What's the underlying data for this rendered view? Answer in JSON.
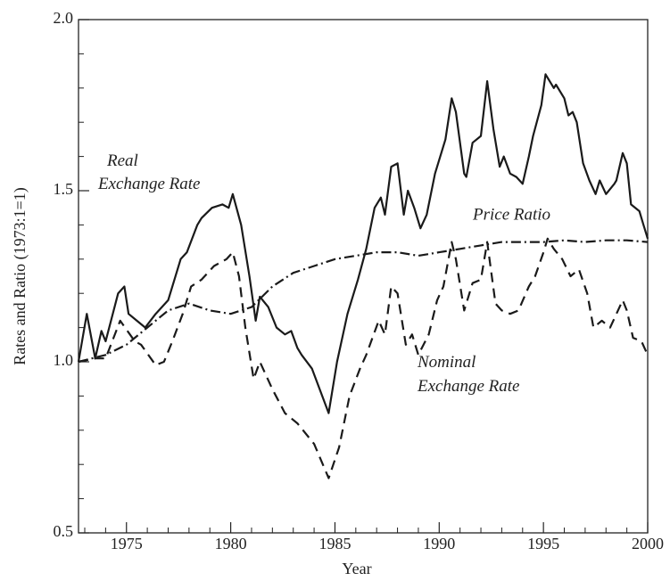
{
  "chart_data": {
    "type": "line",
    "xlabel": "Year",
    "ylabel": "Rates and Ratio (1973:1=1)",
    "xlim": [
      1972.7,
      2000
    ],
    "xticks": [
      1975,
      1980,
      1985,
      1990,
      1995,
      2000
    ],
    "xminorticks": [
      1973,
      1974,
      1976,
      1977,
      1978,
      1979,
      1981,
      1982,
      1983,
      1984,
      1986,
      1987,
      1988,
      1989,
      1991,
      1992,
      1993,
      1994,
      1996,
      1997,
      1998,
      1999
    ],
    "ylim": [
      0.5,
      2.0
    ],
    "yticks": [
      0.5,
      {
        "value": 1.0,
        "label": "1.0"
      },
      1.5,
      {
        "value": 2.0,
        "label": "2.0"
      }
    ],
    "yminorticks": [
      0.6,
      0.7,
      0.8,
      0.9,
      1.1,
      1.2,
      1.3,
      1.4,
      1.6,
      1.7,
      1.8,
      1.9
    ],
    "grid": false,
    "series": [
      {
        "name": "Real Exchange Rate",
        "color": "#1a1a1a",
        "style": "solid",
        "x": [
          1972.7,
          1973.1,
          1973.5,
          1973.8,
          1974.0,
          1974.6,
          1974.9,
          1975.1,
          1975.5,
          1975.9,
          1976.4,
          1977.0,
          1977.6,
          1977.9,
          1978.4,
          1978.6,
          1979.1,
          1979.6,
          1979.9,
          1980.1,
          1980.5,
          1980.9,
          1981.2,
          1981.4,
          1981.8,
          1982.2,
          1982.6,
          1982.9,
          1983.2,
          1983.4,
          1983.9,
          1984.7,
          1985.1,
          1985.6,
          1986.1,
          1986.5,
          1986.9,
          1987.2,
          1987.4,
          1987.7,
          1988.0,
          1988.3,
          1988.5,
          1988.8,
          1989.1,
          1989.4,
          1989.8,
          1990.3,
          1990.6,
          1990.8,
          1991.2,
          1991.3,
          1991.6,
          1992.0,
          1992.3,
          1992.6,
          1992.9,
          1993.1,
          1993.4,
          1993.7,
          1994.0,
          1994.3,
          1994.5,
          1994.9,
          1995.1,
          1995.5,
          1995.6,
          1996.0,
          1996.2,
          1996.4,
          1996.6,
          1996.9,
          1997.2,
          1997.5,
          1997.7,
          1998.0,
          1998.4,
          1998.5,
          1998.8,
          1999.0,
          1999.2,
          1999.6,
          1999.8,
          2000.0
        ],
        "values": [
          1.0,
          1.14,
          1.01,
          1.09,
          1.06,
          1.2,
          1.22,
          1.14,
          1.12,
          1.1,
          1.14,
          1.18,
          1.3,
          1.32,
          1.4,
          1.42,
          1.45,
          1.46,
          1.45,
          1.49,
          1.4,
          1.25,
          1.12,
          1.19,
          1.16,
          1.1,
          1.08,
          1.09,
          1.04,
          1.02,
          0.98,
          0.85,
          1.0,
          1.14,
          1.24,
          1.33,
          1.45,
          1.48,
          1.43,
          1.57,
          1.58,
          1.43,
          1.5,
          1.45,
          1.39,
          1.43,
          1.55,
          1.65,
          1.77,
          1.73,
          1.55,
          1.54,
          1.64,
          1.66,
          1.82,
          1.68,
          1.57,
          1.6,
          1.55,
          1.54,
          1.52,
          1.6,
          1.66,
          1.75,
          1.84,
          1.8,
          1.81,
          1.77,
          1.72,
          1.73,
          1.7,
          1.58,
          1.53,
          1.49,
          1.53,
          1.49,
          1.52,
          1.53,
          1.61,
          1.58,
          1.46,
          1.44,
          1.4,
          1.36
        ]
      },
      {
        "name": "Nominal Exchange Rate",
        "color": "#1a1a1a",
        "style": "dashed",
        "x": [
          1972.7,
          1973.5,
          1974.0,
          1974.7,
          1975.4,
          1975.7,
          1976.4,
          1976.8,
          1977.2,
          1977.7,
          1978.1,
          1978.6,
          1979.2,
          1979.8,
          1980.1,
          1980.4,
          1980.7,
          1981.1,
          1981.4,
          1982.0,
          1982.6,
          1983.2,
          1984.0,
          1984.7,
          1985.2,
          1985.7,
          1986.2,
          1986.5,
          1987.1,
          1987.4,
          1987.7,
          1988.0,
          1988.4,
          1988.7,
          1989.0,
          1989.5,
          1989.9,
          1990.2,
          1990.6,
          1990.8,
          1991.2,
          1991.6,
          1992.0,
          1992.3,
          1992.7,
          1993.0,
          1993.4,
          1993.8,
          1994.3,
          1994.6,
          1995.0,
          1995.2,
          1995.5,
          1995.9,
          1996.3,
          1996.7,
          1997.1,
          1997.4,
          1997.8,
          1998.2,
          1998.8,
          1999.0,
          1999.3,
          1999.7,
          2000.0
        ],
        "values": [
          1.0,
          1.01,
          1.01,
          1.12,
          1.06,
          1.05,
          0.99,
          1.0,
          1.06,
          1.14,
          1.22,
          1.24,
          1.28,
          1.3,
          1.32,
          1.25,
          1.1,
          0.95,
          1.0,
          0.92,
          0.85,
          0.82,
          0.76,
          0.66,
          0.75,
          0.9,
          0.98,
          1.02,
          1.12,
          1.08,
          1.22,
          1.2,
          1.05,
          1.08,
          1.02,
          1.08,
          1.18,
          1.22,
          1.35,
          1.3,
          1.15,
          1.23,
          1.24,
          1.35,
          1.17,
          1.15,
          1.14,
          1.15,
          1.22,
          1.25,
          1.32,
          1.36,
          1.33,
          1.3,
          1.25,
          1.27,
          1.2,
          1.1,
          1.12,
          1.1,
          1.18,
          1.15,
          1.07,
          1.06,
          1.02
        ]
      },
      {
        "name": "Price Ratio",
        "color": "#1a1a1a",
        "style": "dashdot",
        "x": [
          1972.7,
          1974,
          1975,
          1976,
          1977,
          1978,
          1979,
          1980,
          1981,
          1982,
          1983,
          1984,
          1985,
          1986,
          1987,
          1988,
          1989,
          1990,
          1991,
          1992,
          1993,
          1994,
          1995,
          1996,
          1997,
          1998,
          1999,
          2000
        ],
        "values": [
          1.0,
          1.02,
          1.05,
          1.1,
          1.15,
          1.17,
          1.15,
          1.14,
          1.16,
          1.22,
          1.26,
          1.28,
          1.3,
          1.31,
          1.32,
          1.32,
          1.31,
          1.32,
          1.33,
          1.34,
          1.35,
          1.35,
          1.35,
          1.355,
          1.35,
          1.355,
          1.355,
          1.35
        ]
      }
    ]
  }
}
